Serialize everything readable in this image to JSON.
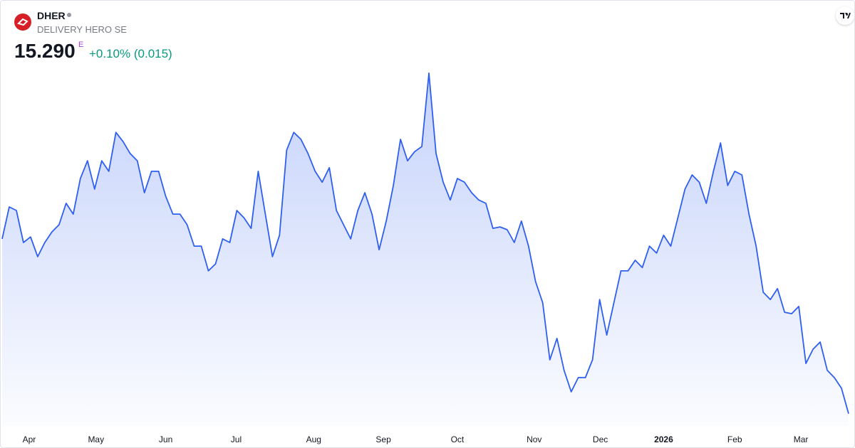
{
  "header": {
    "symbol": "DHER",
    "name": "DELIVERY HERO SE",
    "price": "15.290",
    "flag": "E",
    "change": "+0.10% (0.015)"
  },
  "chart_data": {
    "type": "area",
    "color": "#2f5ff0",
    "values": [
      21.58,
      22.73,
      22.6,
      21.45,
      21.65,
      20.94,
      21.45,
      21.83,
      22.09,
      22.86,
      22.47,
      23.75,
      24.39,
      23.37,
      24.39,
      24.01,
      25.41,
      25.08,
      24.65,
      24.39,
      23.24,
      24.01,
      24.01,
      23.11,
      22.47,
      22.47,
      22.09,
      21.32,
      21.32,
      20.43,
      20.68,
      21.58,
      21.45,
      22.6,
      22.34,
      21.96,
      24.01,
      22.47,
      20.94,
      21.71,
      24.77,
      25.41,
      25.16,
      24.65,
      24.01,
      23.62,
      24.14,
      22.6,
      22.09,
      21.58,
      22.6,
      23.24,
      22.47,
      21.19,
      22.22,
      23.5,
      25.16,
      24.39,
      24.72,
      24.9,
      27.54,
      24.65,
      23.62,
      22.98,
      23.75,
      23.62,
      23.24,
      22.98,
      22.86,
      21.96,
      22.01,
      21.91,
      21.45,
      22.22,
      21.32,
      20.04,
      19.28,
      17.23,
      18.0,
      16.85,
      16.08,
      16.59,
      16.59,
      17.23,
      19.4,
      18.12,
      19.28,
      20.43,
      20.43,
      20.81,
      20.55,
      21.32,
      21.07,
      21.71,
      21.32,
      22.34,
      23.37,
      23.88,
      23.62,
      22.86,
      24.01,
      25.03,
      23.5,
      24.01,
      23.88,
      22.47,
      21.32,
      19.66,
      19.4,
      19.79,
      18.94,
      18.89,
      19.15,
      17.1,
      17.61,
      17.87,
      16.85,
      16.59,
      16.21,
      15.29
    ],
    "xlim": [
      0,
      119
    ],
    "ylim": [
      14.8,
      28.1
    ],
    "xticks": [
      {
        "value": 3.8,
        "label": "Apr"
      },
      {
        "value": 13.2,
        "label": "May"
      },
      {
        "value": 23.0,
        "label": "Jun"
      },
      {
        "value": 32.9,
        "label": "Jul"
      },
      {
        "value": 43.8,
        "label": "Aug"
      },
      {
        "value": 53.6,
        "label": "Sep"
      },
      {
        "value": 64.0,
        "label": "Oct"
      },
      {
        "value": 74.8,
        "label": "Nov"
      },
      {
        "value": 84.1,
        "label": "Dec"
      },
      {
        "value": 93.0,
        "label": "2026"
      },
      {
        "value": 103.0,
        "label": "Feb"
      },
      {
        "value": 112.3,
        "label": "Mar"
      }
    ]
  }
}
